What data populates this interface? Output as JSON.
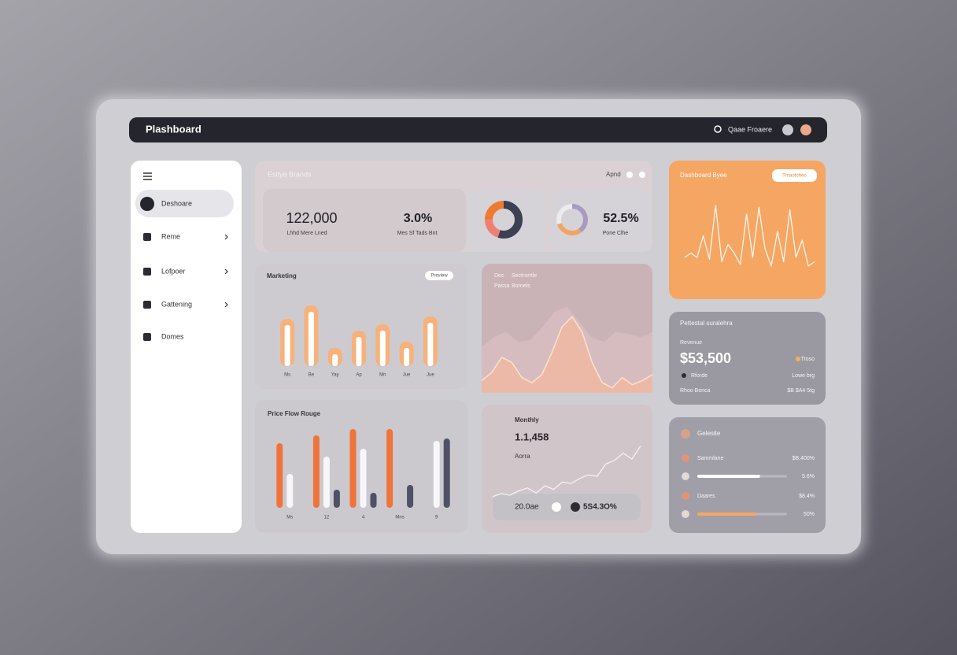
{
  "header": {
    "title": "Plashboard",
    "user": "Qaae Froaere"
  },
  "sidebar": {
    "items": [
      "Deshoare",
      "Reme",
      "Lofpoer",
      "Gattening",
      "Domes"
    ]
  },
  "stats": {
    "title": "Estlye Brands",
    "controls": "Apnd",
    "cards": [
      {
        "value": "122,000",
        "label": "Lhhd Mere Lned"
      },
      {
        "value": "3.0%",
        "label": "Mes Sf Tads Bnt"
      },
      {
        "value": "52.5%",
        "label": "Pone Clhe"
      }
    ]
  },
  "area_panel": {
    "labels": [
      "Dec",
      "Sectrorrtle",
      "Passa",
      "Bornels"
    ]
  },
  "monthly_panel": {
    "value": "1.1,458",
    "sub": "Aorra",
    "footer": [
      "20.0ae",
      "5S4.3O%"
    ]
  },
  "revenue": {
    "title": "Pettestal suralehra",
    "label": "Revenue",
    "value": "$53,500",
    "rows": [
      "Rforde",
      "Ttoso",
      "Lowe brg",
      "Rhoo Bonca",
      "$B $A4 5tg"
    ]
  },
  "list": {
    "title": "Gelesite",
    "rows": [
      {
        "name": "Sammlane",
        "value": "$B.400%"
      },
      {
        "progress": 70,
        "color": "#ffffff",
        "value": "5.6%"
      },
      {
        "name": "Daares",
        "value": "$8.4%"
      },
      {
        "progress": 66,
        "color": "#f6a663",
        "value": "50%"
      }
    ]
  },
  "chart_data": [
    {
      "type": "pie",
      "values": [
        55,
        20,
        25
      ],
      "colors": [
        "#3d3f52",
        "#ef7f72",
        "#f07a30"
      ]
    },
    {
      "type": "pie",
      "values": [
        40,
        30,
        30
      ],
      "colors": [
        "#a99abf",
        "#f2a462",
        "#ecebef"
      ]
    },
    {
      "type": "bar",
      "title": "Marketing",
      "button": "Preview",
      "categories": [
        "Ms",
        "Be",
        "Yay",
        "Ap",
        "Mn",
        "Jue",
        "Jue"
      ],
      "values": [
        60,
        77,
        23,
        45,
        53,
        31,
        63
      ],
      "color": "#f6b27a",
      "ylim": [
        0,
        100
      ]
    },
    {
      "type": "grouped_bar",
      "title": "Price Flow Rouge",
      "categories": [
        "Ms",
        "12",
        "4",
        "Mns",
        "9"
      ],
      "ylim": [
        0,
        100
      ],
      "series": [
        {
          "color": "#f0743a",
          "values": [
            82,
            92,
            100,
            100,
            null
          ]
        },
        {
          "color": "#f7f6f8",
          "values": [
            43,
            65,
            75,
            null,
            85
          ]
        },
        {
          "color": "#4f5164",
          "values": [
            null,
            23,
            19,
            29,
            88
          ]
        }
      ]
    },
    {
      "type": "area",
      "ylim": [
        0,
        100
      ],
      "series": [
        {
          "color": "#dcc0c0",
          "values": [
            45,
            55,
            60,
            50,
            52,
            65,
            80,
            85,
            70,
            55,
            50,
            60,
            58,
            55,
            60
          ]
        },
        {
          "color": "#f1b9a3",
          "values": [
            12,
            20,
            35,
            30,
            15,
            10,
            18,
            40,
            65,
            75,
            60,
            30,
            10,
            5,
            15,
            8,
            12,
            18
          ]
        }
      ]
    },
    {
      "type": "line",
      "title": "Monthly",
      "ylim": [
        0,
        100
      ],
      "series": [
        {
          "color": "#f8f0f2",
          "values": [
            10,
            14,
            12,
            18,
            22,
            15,
            25,
            20,
            30,
            28,
            35,
            40,
            38,
            55,
            60,
            70,
            62,
            80
          ]
        }
      ]
    },
    {
      "type": "line",
      "title": "Dashboard Byee",
      "button": "Trnaotoheo",
      "ylim": [
        0,
        100
      ],
      "series": [
        {
          "color": "#fff7ee",
          "values": [
            30,
            35,
            30,
            55,
            28,
            90,
            25,
            45,
            35,
            22,
            80,
            30,
            88,
            40,
            20,
            60,
            25,
            85,
            30,
            50,
            20,
            25
          ]
        }
      ]
    }
  ]
}
